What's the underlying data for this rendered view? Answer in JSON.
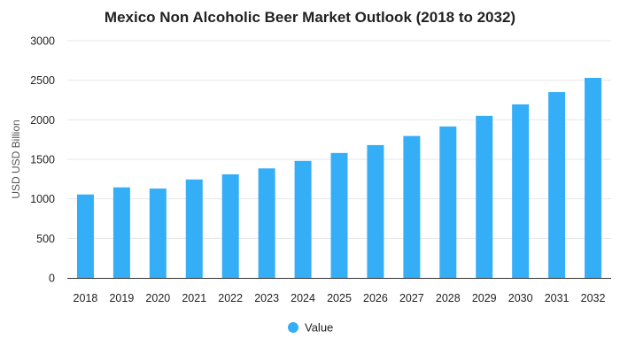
{
  "chart_data": {
    "type": "bar",
    "title": "Mexico Non Alcoholic Beer Market Outlook (2018 to 2032)",
    "xlabel": "",
    "ylabel": "USD USD Billion",
    "categories": [
      "2018",
      "2019",
      "2020",
      "2021",
      "2022",
      "2023",
      "2024",
      "2025",
      "2026",
      "2027",
      "2028",
      "2029",
      "2030",
      "2031",
      "2032"
    ],
    "series": [
      {
        "name": "Value",
        "color": "#35aef8",
        "values": [
          1055,
          1145,
          1130,
          1245,
          1310,
          1385,
          1480,
          1580,
          1680,
          1795,
          1915,
          2050,
          2195,
          2350,
          2530
        ]
      }
    ],
    "ylim": [
      0,
      3000
    ],
    "yticks": [
      0,
      500,
      1000,
      1500,
      2000,
      2500,
      3000
    ],
    "grid": true,
    "legend_position": "bottom-center"
  }
}
